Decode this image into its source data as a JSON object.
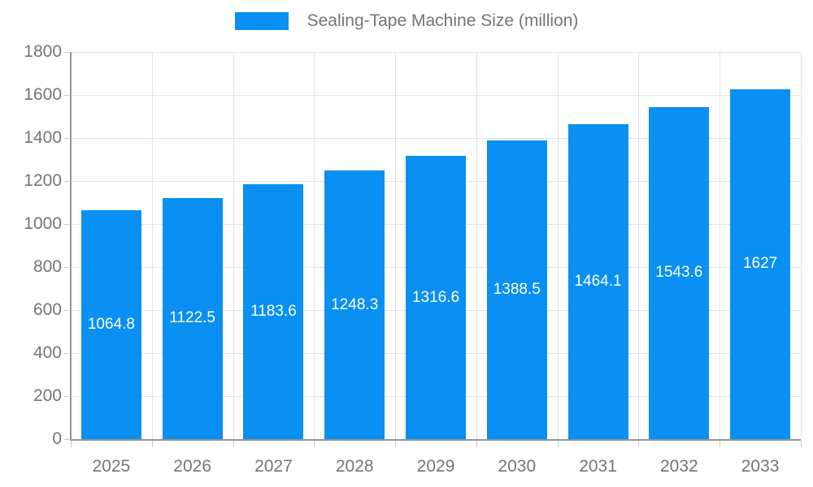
{
  "chart_data": {
    "type": "bar",
    "legend": "Sealing-Tape Machine Size (million)",
    "legend_position": "top",
    "categories": [
      "2025",
      "2026",
      "2027",
      "2028",
      "2029",
      "2030",
      "2031",
      "2032",
      "2033"
    ],
    "values": [
      1064.8,
      1122.5,
      1183.6,
      1248.3,
      1316.6,
      1388.5,
      1464.1,
      1543.6,
      1627
    ],
    "value_labels": [
      "1064.8",
      "1122.5",
      "1183.6",
      "1248.3",
      "1316.6",
      "1388.5",
      "1464.1",
      "1543.6",
      "1627"
    ],
    "xlabel": "",
    "ylabel": "",
    "ylim": [
      0,
      1800
    ],
    "ytick_step": 200,
    "grid": true,
    "colors": {
      "bar": "#0990f2",
      "bar_label_text": "#ffffff",
      "axis_text": "#757575",
      "gridline": "#e3e3e3",
      "axis_line": "#949494",
      "tick_mark": "#c9c9c9",
      "background": "#ffffff"
    }
  }
}
